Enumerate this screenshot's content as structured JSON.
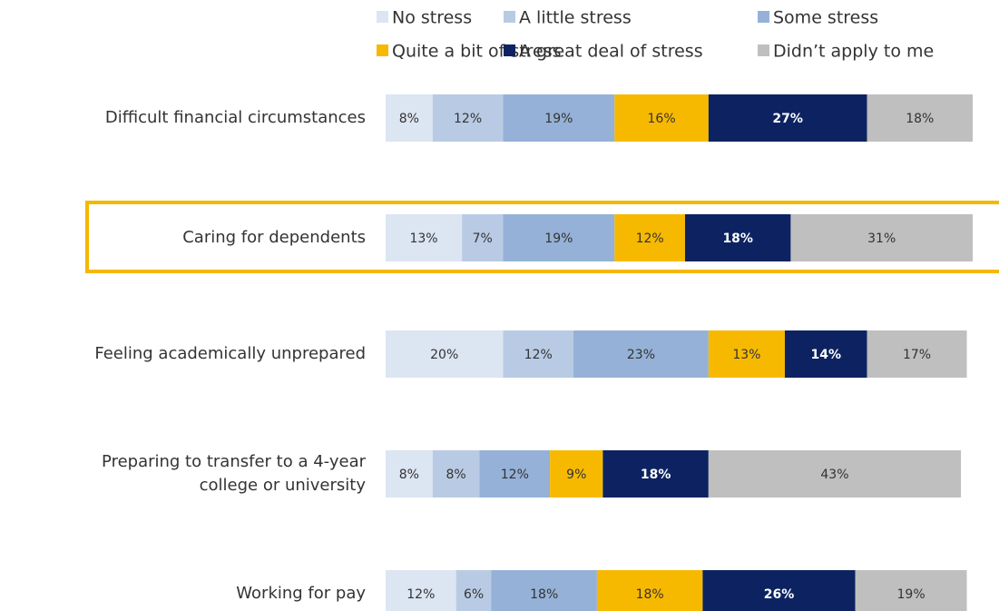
{
  "chart_data": {
    "type": "stacked-bar-horizontal",
    "categories": [
      "Difficult financial circumstances",
      "Caring for dependents",
      "Feeling academically unprepared",
      "Preparing to transfer to a 4-year\ncollege or university",
      "Working for pay"
    ],
    "series": [
      {
        "name": "No stress",
        "color": "#dce5f2",
        "values": [
          8,
          13,
          20,
          8,
          12
        ],
        "value_labels": [
          "8%",
          "13%",
          "20%",
          "8%",
          "12%"
        ]
      },
      {
        "name": "A little stress",
        "color": "#b9cbe4",
        "values": [
          12,
          7,
          12,
          8,
          6
        ],
        "value_labels": [
          "12%",
          "7%",
          "12%",
          "8%",
          "6%"
        ]
      },
      {
        "name": "Some stress",
        "color": "#95b1d7",
        "values": [
          19,
          19,
          23,
          12,
          18
        ],
        "value_labels": [
          "19%",
          "19%",
          "23%",
          "12%",
          "18%"
        ]
      },
      {
        "name": "Quite a bit of stress",
        "color": "#f7b900",
        "values": [
          16,
          12,
          13,
          9,
          18
        ],
        "value_labels": [
          "16%",
          "12%",
          "13%",
          "9%",
          "18%"
        ]
      },
      {
        "name": "A great deal of stress",
        "color": "#0d2361",
        "values": [
          27,
          18,
          14,
          18,
          26
        ],
        "value_labels": [
          "27%",
          "18%",
          "14%",
          "18%",
          "26%"
        ]
      },
      {
        "name": "Didn’t apply to me",
        "color": "#bfbfbf",
        "values": [
          18,
          31,
          17,
          43,
          19
        ],
        "value_labels": [
          "18%",
          "31%",
          "17%",
          "43%",
          "19%"
        ]
      }
    ],
    "xlim": [
      0,
      100
    ],
    "highlight": 1,
    "highlight_color": "#f5b800"
  }
}
